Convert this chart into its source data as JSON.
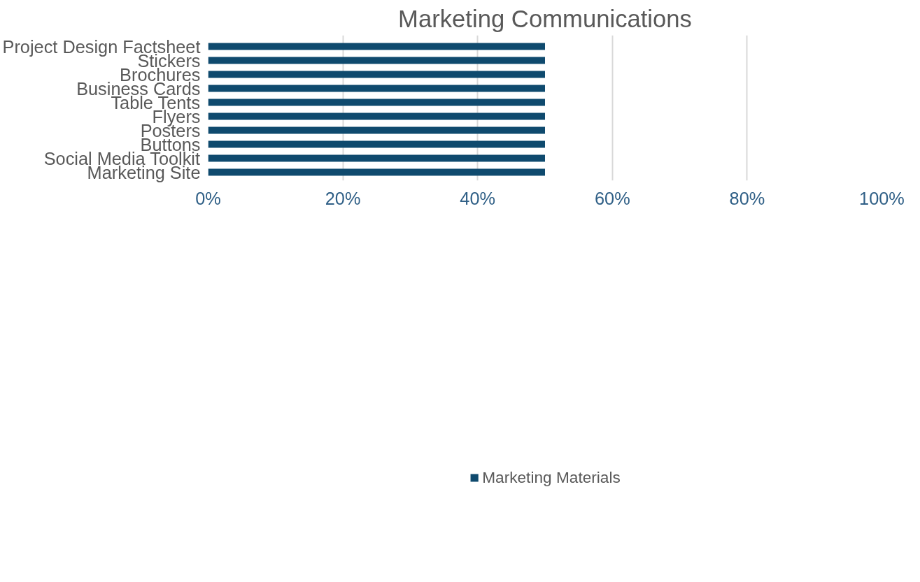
{
  "chart_data": {
    "type": "bar",
    "orientation": "horizontal",
    "title": "Marketing Communications",
    "categories": [
      "Project Design Factsheet",
      "Stickers",
      "Brochures",
      "Business Cards",
      "Table Tents",
      "Flyers",
      "Posters",
      "Buttons",
      "Social Media Toolkit",
      "Marketing Site"
    ],
    "series": [
      {
        "name": "Marketing Materials",
        "color": "#0f4a6e",
        "values": [
          50,
          50,
          50,
          50,
          50,
          50,
          50,
          50,
          50,
          50
        ]
      }
    ],
    "xlim": [
      0,
      100
    ],
    "xticks": [
      {
        "value": 0,
        "label": "0%"
      },
      {
        "value": 20,
        "label": "20%"
      },
      {
        "value": 40,
        "label": "40%"
      },
      {
        "value": 60,
        "label": "60%"
      },
      {
        "value": 80,
        "label": "80%"
      },
      {
        "value": 100,
        "label": "100%"
      }
    ],
    "grid": "x",
    "legend": "bottom"
  }
}
